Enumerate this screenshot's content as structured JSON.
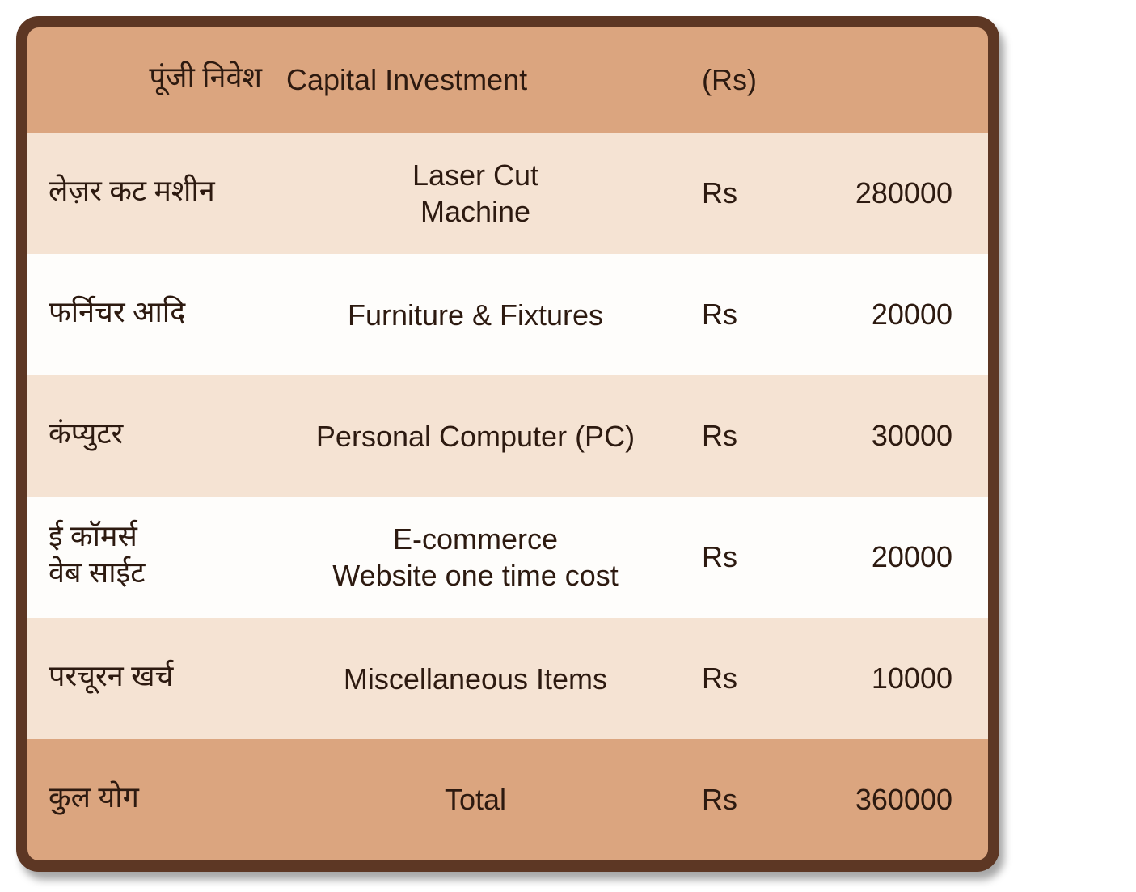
{
  "colors": {
    "border": "#5d3724",
    "header_bg": "#dba57f",
    "row_bg_1": "#f5e3d3",
    "row_bg_2": "#fefdfb",
    "total_bg": "#dba57f",
    "text": "#2d1a10"
  },
  "header": {
    "hindi": "पूंजी निवेश",
    "english": "Capital Investment",
    "unit": "(Rs)"
  },
  "rows": [
    {
      "hindi": "लेज़र कट मशीन",
      "english": "Laser Cut\nMachine",
      "unit": "Rs",
      "value": "280000"
    },
    {
      "hindi": "फर्निचर आदि",
      "english": "Furniture & Fixtures",
      "unit": "Rs",
      "value": "20000"
    },
    {
      "hindi": "कंप्युटर",
      "english": "Personal Computer (PC)",
      "unit": "Rs",
      "value": "30000"
    },
    {
      "hindi": "ई कॉमर्स\nवेब साईट",
      "english": "E-commerce\nWebsite one time cost",
      "unit": "Rs",
      "value": "20000"
    },
    {
      "hindi": "परचूरन खर्च",
      "english": "Miscellaneous Items",
      "unit": "Rs",
      "value": "10000"
    }
  ],
  "total": {
    "hindi": "कुल योग",
    "english": "Total",
    "unit": "Rs",
    "value": "360000"
  }
}
